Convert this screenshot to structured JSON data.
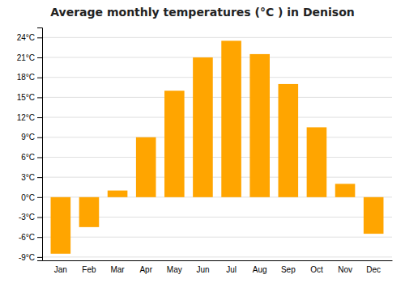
{
  "chart_data": {
    "type": "bar",
    "title": "Average monthly temperatures (°C ) in Denison",
    "categories": [
      "Jan",
      "Feb",
      "Mar",
      "Apr",
      "May",
      "Jun",
      "Jul",
      "Aug",
      "Sep",
      "Oct",
      "Nov",
      "Dec"
    ],
    "values": [
      -8.5,
      -4.5,
      1.0,
      9.0,
      16.0,
      21.0,
      23.5,
      21.5,
      17.0,
      10.5,
      2.0,
      -5.5
    ],
    "color": "#FFA500",
    "ylim": [
      -9.5,
      25.5
    ],
    "yticks": [
      {
        "value": -9,
        "label": "-9°C"
      },
      {
        "value": -6,
        "label": "-6°C"
      },
      {
        "value": -3,
        "label": "-3°C"
      },
      {
        "value": 0,
        "label": "0°C"
      },
      {
        "value": 3,
        "label": "3°C"
      },
      {
        "value": 6,
        "label": "6°C"
      },
      {
        "value": 9,
        "label": "9°C"
      },
      {
        "value": 12,
        "label": "12°C"
      },
      {
        "value": 15,
        "label": "15°C"
      },
      {
        "value": 18,
        "label": "18°C"
      },
      {
        "value": 21,
        "label": "21°C"
      },
      {
        "value": 24,
        "label": "24°C"
      }
    ],
    "grid": true
  }
}
